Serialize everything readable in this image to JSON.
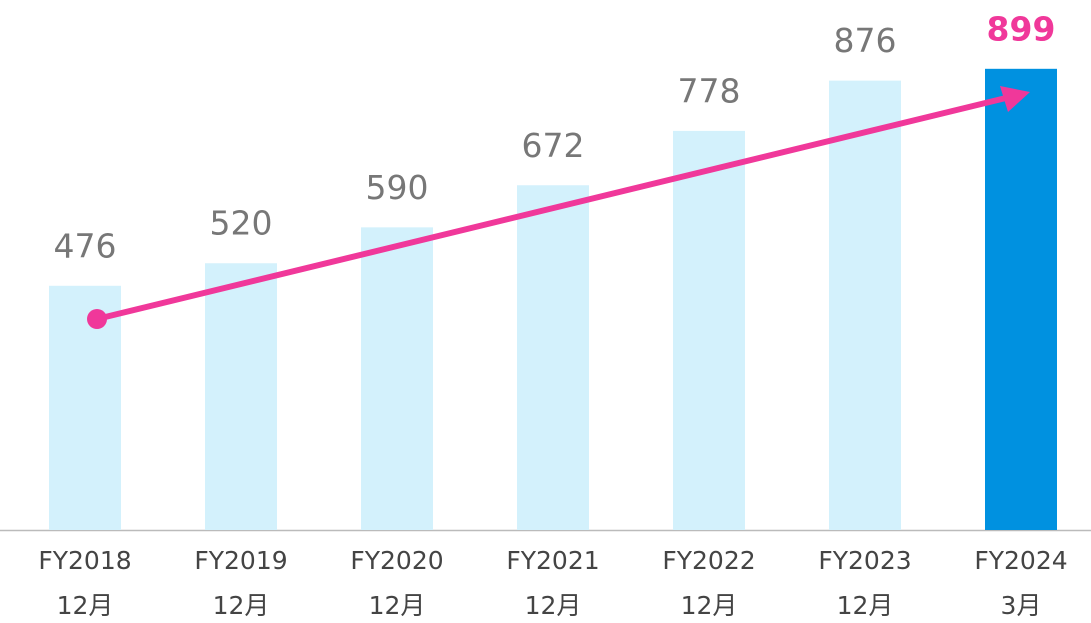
{
  "chart_data": {
    "type": "bar",
    "categories": [
      [
        "FY2018",
        "12月"
      ],
      [
        "FY2019",
        "12月"
      ],
      [
        "FY2020",
        "12月"
      ],
      [
        "FY2021",
        "12月"
      ],
      [
        "FY2022",
        "12月"
      ],
      [
        "FY2023",
        "12月"
      ],
      [
        "FY2024",
        "3月"
      ]
    ],
    "values": [
      476,
      520,
      590,
      672,
      778,
      876,
      899
    ],
    "colors": [
      "#d3f1fc",
      "#d3f1fc",
      "#d3f1fc",
      "#d3f1fc",
      "#d3f1fc",
      "#d3f1fc",
      "#0091e0"
    ],
    "label_colors": [
      "#777777",
      "#777777",
      "#777777",
      "#777777",
      "#777777",
      "#777777",
      "#f0389a"
    ],
    "ylim": [
      0,
      1000
    ]
  }
}
